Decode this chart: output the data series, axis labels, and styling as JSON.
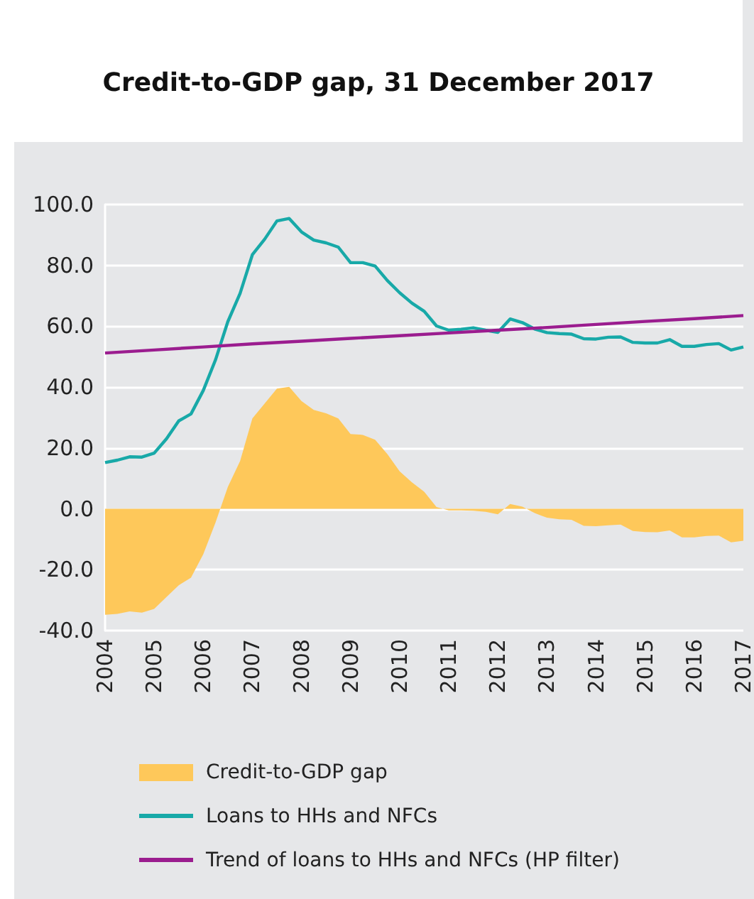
{
  "chart_data": {
    "type": "line",
    "title": "Credit-to-GDP gap, 31 December 2017",
    "x": [
      2004,
      2004.25,
      2004.5,
      2004.75,
      2005,
      2005.25,
      2005.5,
      2005.75,
      2006,
      2006.25,
      2006.5,
      2006.75,
      2007,
      2007.25,
      2007.5,
      2007.75,
      2008,
      2008.25,
      2008.5,
      2008.75,
      2009,
      2009.25,
      2009.5,
      2009.75,
      2010,
      2010.25,
      2010.5,
      2010.75,
      2011,
      2011.25,
      2011.5,
      2011.75,
      2012,
      2012.25,
      2012.5,
      2012.75,
      2013,
      2013.25,
      2013.5,
      2013.75,
      2014,
      2014.25,
      2014.5,
      2014.75,
      2015,
      2015.25,
      2015.5,
      2015.75,
      2016,
      2016.25,
      2016.5,
      2016.75,
      2017
    ],
    "series": [
      {
        "name": "Credit-to-GDP gap",
        "type": "area",
        "color": "#fec85a",
        "values": [
          -34.8,
          -34.5,
          -33.7,
          -34.1,
          -32.9,
          -29,
          -25.1,
          -22.6,
          -14.9,
          -4.5,
          7.2,
          15.7,
          29.7,
          34.6,
          39.5,
          40.1,
          35.4,
          32.5,
          31.4,
          29.7,
          24.6,
          24.3,
          22.7,
          18,
          12.3,
          8.7,
          5.6,
          0.6,
          -0.5,
          -0.5,
          -0.6,
          -1,
          -1.8,
          1.6,
          0.7,
          -1.4,
          -2.9,
          -3.4,
          -3.6,
          -5.6,
          -5.7,
          -5.4,
          -5.2,
          -7.3,
          -7.6,
          -7.7,
          -7.1,
          -9.4,
          -9.4,
          -8.9,
          -8.8,
          -11,
          -10.5
        ]
      },
      {
        "name": "Loans to HHs and NFCs",
        "color": "#18a9a8",
        "values": [
          15.2,
          16,
          17.1,
          17,
          18.3,
          23,
          28.9,
          31.2,
          38.9,
          49,
          61.5,
          70.8,
          83.5,
          88.6,
          94.6,
          95.4,
          91,
          88.3,
          87.4,
          86,
          80.9,
          80.9,
          79.8,
          75,
          71,
          67.6,
          64.9,
          60.1,
          58.7,
          59,
          59.5,
          58.7,
          58,
          62.4,
          61.2,
          59.1,
          57.9,
          57.6,
          57.4,
          55.9,
          55.8,
          56.4,
          56.5,
          54.7,
          54.5,
          54.5,
          55.6,
          53.4,
          53.4,
          54,
          54.3,
          52.2,
          53.2
        ]
      },
      {
        "name": "Trend of loans to HHs and NFCs (HP filter)",
        "color": "#9b1d8f",
        "x": [
          2004,
          2005,
          2006,
          2007,
          2008,
          2009,
          2010,
          2011,
          2012,
          2013,
          2014,
          2015,
          2016,
          2017
        ],
        "values": [
          51.2,
          52.2,
          53.2,
          54.2,
          55.1,
          56,
          56.9,
          57.8,
          58.7,
          59.6,
          60.6,
          61.6,
          62.5,
          63.5
        ]
      }
    ],
    "xlim": [
      2004,
      2017
    ],
    "xticks": [
      2004,
      2005,
      2006,
      2007,
      2008,
      2009,
      2010,
      2011,
      2012,
      2013,
      2014,
      2015,
      2016,
      2017
    ],
    "ylim": [
      -40,
      100
    ],
    "yticks": [
      {
        "value": -40,
        "label": "-40.0"
      },
      {
        "value": -20,
        "label": "-20.0"
      },
      {
        "value": 0,
        "label": "0.0"
      },
      {
        "value": 20,
        "label": "20.0"
      },
      {
        "value": 40,
        "label": "40.0"
      },
      {
        "value": 60,
        "label": "60.0"
      },
      {
        "value": 80,
        "label": "80.0"
      },
      {
        "value": 100,
        "label": "100.0"
      }
    ],
    "grid": "y",
    "legend": "bottom",
    "marker": "none",
    "line_style": "solid"
  }
}
